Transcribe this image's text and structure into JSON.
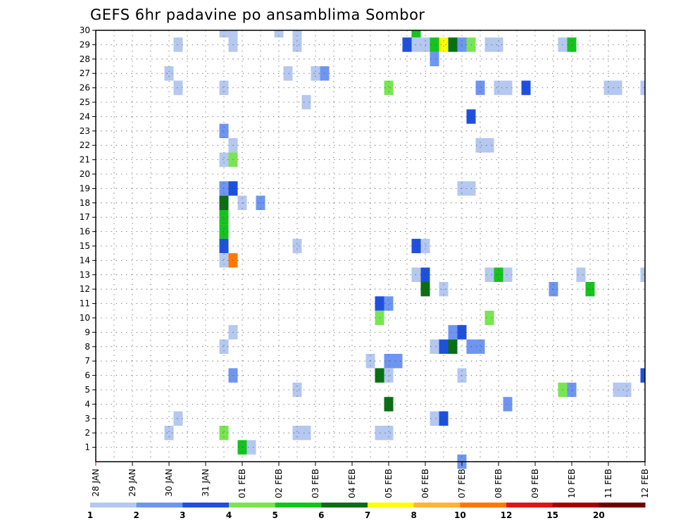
{
  "chart_data": {
    "type": "heatmap",
    "title": "GEFS 6hr padavine po ansamblima Sombor",
    "xlabel": "",
    "ylabel": "",
    "x_tick_labels": [
      "28 JAN",
      "29 JAN",
      "30 JAN",
      "31 JAN",
      "01 FEB",
      "02 FEB",
      "03 FEB",
      "04 FEB",
      "05 FEB",
      "06 FEB",
      "07 FEB",
      "08 FEB",
      "09 FEB",
      "10 FEB",
      "11 FEB",
      "12 FEB"
    ],
    "y_tick_labels": [
      "1",
      "2",
      "3",
      "4",
      "5",
      "6",
      "7",
      "8",
      "9",
      "10",
      "11",
      "12",
      "13",
      "14",
      "15",
      "16",
      "17",
      "18",
      "19",
      "20",
      "21",
      "22",
      "23",
      "24",
      "25",
      "26",
      "27",
      "28",
      "29",
      "30"
    ],
    "xlim_days": [
      0,
      15
    ],
    "ylim": [
      0,
      30
    ],
    "grid": true,
    "legend_placement": "bottom",
    "color_scale": {
      "labels": [
        "1",
        "2",
        "3",
        "4",
        "5",
        "6",
        "7",
        "8",
        "10",
        "12",
        "15",
        "20"
      ],
      "colors": [
        "#b4c8f0",
        "#6e96f0",
        "#1e50dc",
        "#78e650",
        "#14c31e",
        "#0a6e14",
        "#ffff00",
        "#ffb432",
        "#ff7800",
        "#e11414",
        "#a50000",
        "#6e0000"
      ]
    },
    "cells": [
      {
        "day": 3.5,
        "member": 30,
        "level": 1
      },
      {
        "day": 3.75,
        "member": 30,
        "level": 1
      },
      {
        "day": 5.0,
        "member": 30,
        "level": 1
      },
      {
        "day": 5.5,
        "member": 30,
        "level": 1
      },
      {
        "day": 8.75,
        "member": 30,
        "level": 5
      },
      {
        "day": 2.25,
        "member": 29,
        "level": 1
      },
      {
        "day": 3.75,
        "member": 29,
        "level": 1
      },
      {
        "day": 5.5,
        "member": 29,
        "level": 1
      },
      {
        "day": 8.5,
        "member": 29,
        "level": 3
      },
      {
        "day": 8.75,
        "member": 29,
        "level": 1
      },
      {
        "day": 9.0,
        "member": 29,
        "level": 1
      },
      {
        "day": 9.25,
        "member": 29,
        "level": 5
      },
      {
        "day": 9.5,
        "member": 29,
        "level": 7
      },
      {
        "day": 9.75,
        "member": 29,
        "level": 6
      },
      {
        "day": 10.0,
        "member": 29,
        "level": 2
      },
      {
        "day": 10.25,
        "member": 29,
        "level": 4
      },
      {
        "day": 10.75,
        "member": 29,
        "level": 1
      },
      {
        "day": 11.0,
        "member": 29,
        "level": 1
      },
      {
        "day": 12.75,
        "member": 29,
        "level": 1
      },
      {
        "day": 13.0,
        "member": 29,
        "level": 5
      },
      {
        "day": 9.25,
        "member": 28,
        "level": 2
      },
      {
        "day": 2.0,
        "member": 27,
        "level": 1
      },
      {
        "day": 5.25,
        "member": 27,
        "level": 1
      },
      {
        "day": 6.0,
        "member": 27,
        "level": 1
      },
      {
        "day": 6.25,
        "member": 27,
        "level": 2
      },
      {
        "day": 2.25,
        "member": 26,
        "level": 1
      },
      {
        "day": 3.5,
        "member": 26,
        "level": 1
      },
      {
        "day": 8.0,
        "member": 26,
        "level": 4
      },
      {
        "day": 10.5,
        "member": 26,
        "level": 2
      },
      {
        "day": 11.0,
        "member": 26,
        "level": 1
      },
      {
        "day": 11.25,
        "member": 26,
        "level": 1
      },
      {
        "day": 11.75,
        "member": 26,
        "level": 3
      },
      {
        "day": 14.0,
        "member": 26,
        "level": 1
      },
      {
        "day": 14.25,
        "member": 26,
        "level": 1
      },
      {
        "day": 15.0,
        "member": 26,
        "level": 1
      },
      {
        "day": 5.75,
        "member": 25,
        "level": 1
      },
      {
        "day": 10.25,
        "member": 24,
        "level": 3
      },
      {
        "day": 3.5,
        "member": 23,
        "level": 2
      },
      {
        "day": 3.75,
        "member": 22,
        "level": 1
      },
      {
        "day": 10.5,
        "member": 22,
        "level": 1
      },
      {
        "day": 10.75,
        "member": 22,
        "level": 1
      },
      {
        "day": 3.5,
        "member": 21,
        "level": 1
      },
      {
        "day": 3.75,
        "member": 21,
        "level": 4
      },
      {
        "day": 3.5,
        "member": 19,
        "level": 2
      },
      {
        "day": 3.75,
        "member": 19,
        "level": 3
      },
      {
        "day": 10.0,
        "member": 19,
        "level": 1
      },
      {
        "day": 10.25,
        "member": 19,
        "level": 1
      },
      {
        "day": 3.5,
        "member": 18,
        "level": 6
      },
      {
        "day": 4.0,
        "member": 18,
        "level": 1
      },
      {
        "day": 4.5,
        "member": 18,
        "level": 2
      },
      {
        "day": 3.5,
        "member": 17,
        "level": 5
      },
      {
        "day": 3.5,
        "member": 16,
        "level": 5
      },
      {
        "day": 3.5,
        "member": 15,
        "level": 3
      },
      {
        "day": 5.5,
        "member": 15,
        "level": 1
      },
      {
        "day": 8.75,
        "member": 15,
        "level": 3
      },
      {
        "day": 9.0,
        "member": 15,
        "level": 1
      },
      {
        "day": 3.5,
        "member": 14,
        "level": 1
      },
      {
        "day": 3.75,
        "member": 14,
        "level": 9
      },
      {
        "day": 8.75,
        "member": 13,
        "level": 1
      },
      {
        "day": 9.0,
        "member": 13,
        "level": 3
      },
      {
        "day": 10.75,
        "member": 13,
        "level": 1
      },
      {
        "day": 11.0,
        "member": 13,
        "level": 5
      },
      {
        "day": 11.25,
        "member": 13,
        "level": 1
      },
      {
        "day": 13.25,
        "member": 13,
        "level": 1
      },
      {
        "day": 15.0,
        "member": 13,
        "level": 1
      },
      {
        "day": 9.0,
        "member": 12,
        "level": 6
      },
      {
        "day": 9.5,
        "member": 12,
        "level": 1
      },
      {
        "day": 12.5,
        "member": 12,
        "level": 2
      },
      {
        "day": 13.5,
        "member": 12,
        "level": 5
      },
      {
        "day": 7.75,
        "member": 11,
        "level": 3
      },
      {
        "day": 8.0,
        "member": 11,
        "level": 2
      },
      {
        "day": 7.75,
        "member": 10,
        "level": 4
      },
      {
        "day": 10.75,
        "member": 10,
        "level": 4
      },
      {
        "day": 3.75,
        "member": 9,
        "level": 1
      },
      {
        "day": 9.75,
        "member": 9,
        "level": 2
      },
      {
        "day": 10.0,
        "member": 9,
        "level": 3
      },
      {
        "day": 3.5,
        "member": 8,
        "level": 1
      },
      {
        "day": 9.25,
        "member": 8,
        "level": 1
      },
      {
        "day": 9.5,
        "member": 8,
        "level": 3
      },
      {
        "day": 9.75,
        "member": 8,
        "level": 6
      },
      {
        "day": 10.25,
        "member": 8,
        "level": 2
      },
      {
        "day": 10.5,
        "member": 8,
        "level": 2
      },
      {
        "day": 7.5,
        "member": 7,
        "level": 1
      },
      {
        "day": 8.0,
        "member": 7,
        "level": 2
      },
      {
        "day": 8.25,
        "member": 7,
        "level": 2
      },
      {
        "day": 3.75,
        "member": 6,
        "level": 2
      },
      {
        "day": 7.75,
        "member": 6,
        "level": 6
      },
      {
        "day": 8.0,
        "member": 6,
        "level": 1
      },
      {
        "day": 10.0,
        "member": 6,
        "level": 1
      },
      {
        "day": 15.0,
        "member": 6,
        "level": 3
      },
      {
        "day": 5.5,
        "member": 5,
        "level": 1
      },
      {
        "day": 12.75,
        "member": 5,
        "level": 4
      },
      {
        "day": 13.0,
        "member": 5,
        "level": 2
      },
      {
        "day": 14.25,
        "member": 5,
        "level": 1
      },
      {
        "day": 14.5,
        "member": 5,
        "level": 1
      },
      {
        "day": 8.0,
        "member": 4,
        "level": 6
      },
      {
        "day": 11.25,
        "member": 4,
        "level": 2
      },
      {
        "day": 2.25,
        "member": 3,
        "level": 1
      },
      {
        "day": 9.25,
        "member": 3,
        "level": 1
      },
      {
        "day": 9.5,
        "member": 3,
        "level": 3
      },
      {
        "day": 2.0,
        "member": 2,
        "level": 1
      },
      {
        "day": 3.5,
        "member": 2,
        "level": 4
      },
      {
        "day": 5.5,
        "member": 2,
        "level": 1
      },
      {
        "day": 5.75,
        "member": 2,
        "level": 1
      },
      {
        "day": 7.75,
        "member": 2,
        "level": 1
      },
      {
        "day": 8.0,
        "member": 2,
        "level": 1
      },
      {
        "day": 4.0,
        "member": 1,
        "level": 5
      },
      {
        "day": 4.25,
        "member": 1,
        "level": 1
      },
      {
        "day": 10.0,
        "member": 0,
        "level": 2
      }
    ]
  }
}
